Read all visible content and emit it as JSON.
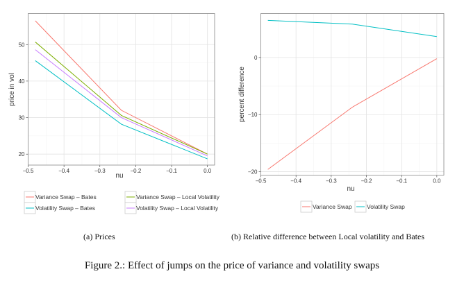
{
  "figure_caption": "Figure 2.: Effect of jumps on the price of variance and volatility swaps",
  "subcaptions": [
    "(a) Prices",
    "(b) Relative difference between Local volatility and Bates"
  ],
  "chart_data": [
    {
      "type": "line",
      "xlabel": "nu",
      "ylabel": "price in vol",
      "xlim": [
        -0.5,
        0.02
      ],
      "ylim": [
        17,
        58.5
      ],
      "xticks": [
        -0.5,
        -0.4,
        -0.3,
        -0.2,
        -0.1,
        0.0
      ],
      "xtick_labels": [
        "−0.5",
        "−0.4",
        "−0.3",
        "−0.2",
        "−0.1",
        "0.0"
      ],
      "yticks": [
        20,
        30,
        40,
        50
      ],
      "ytick_labels": [
        "20",
        "30",
        "40",
        "50"
      ],
      "grid": true,
      "legend_position": "bottom",
      "x": [
        -0.48,
        -0.24,
        0.0
      ],
      "series": [
        {
          "name": "Variance Swap – Bates",
          "color": "#F8766D",
          "values": [
            56.5,
            32.0,
            20.0
          ]
        },
        {
          "name": "Variance Swap – Local Volatility",
          "color": "#7CAE00",
          "values": [
            50.7,
            30.6,
            20.0
          ]
        },
        {
          "name": "Volatility Swap – Bates",
          "color": "#00BFC4",
          "values": [
            45.6,
            28.2,
            18.7
          ]
        },
        {
          "name": "Volatility Swap – Local Volatility",
          "color": "#C77CFF",
          "values": [
            48.6,
            30.0,
            19.5
          ]
        }
      ]
    },
    {
      "type": "line",
      "xlabel": "nu",
      "ylabel": "percent difference",
      "xlim": [
        -0.5,
        0.02
      ],
      "ylim": [
        -20.6,
        7.7
      ],
      "xticks": [
        -0.5,
        -0.4,
        -0.3,
        -0.2,
        -0.1,
        0.0
      ],
      "xtick_labels": [
        "−0.5",
        "−0.4",
        "−0.3",
        "−0.2",
        "−0.1",
        "0.0"
      ],
      "yticks": [
        -20,
        -10,
        0
      ],
      "ytick_labels": [
        "−20",
        "−10",
        "0"
      ],
      "grid": true,
      "legend_position": "bottom",
      "x": [
        -0.48,
        -0.24,
        0.0
      ],
      "series": [
        {
          "name": "Variance Swap",
          "color": "#F8766D",
          "values": [
            -19.6,
            -8.7,
            -0.2
          ]
        },
        {
          "name": "Volatility Swap",
          "color": "#00BFC4",
          "values": [
            6.5,
            5.85,
            3.66
          ]
        }
      ]
    }
  ]
}
